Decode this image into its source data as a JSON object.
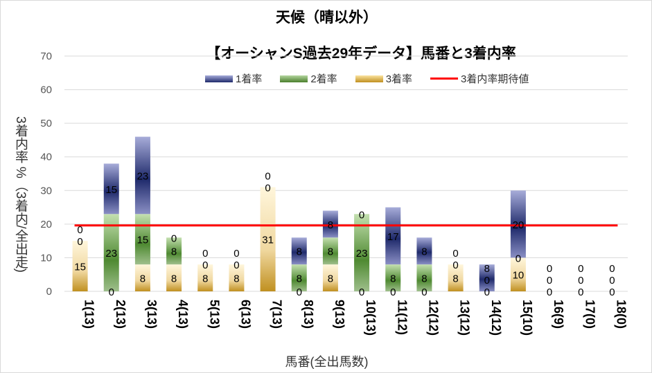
{
  "chart_data": {
    "type": "bar",
    "stacked": true,
    "title": "天候（晴以外）",
    "subtitle": "【オーシャンS過去29年データ】馬番と3着内率",
    "xlabel": "馬番(全出馬数)",
    "ylabel": "3着内率 %（3着内/全出走)",
    "ylim": [
      0,
      70
    ],
    "yticks": [
      0,
      10,
      20,
      30,
      40,
      50,
      60,
      70
    ],
    "grid": true,
    "legend_position": "top",
    "categories": [
      "1(13)",
      "2(13)",
      "3(13)",
      "4(13)",
      "5(13)",
      "6(13)",
      "7(13)",
      "8(13)",
      "9(13)",
      "10(13)",
      "11(12)",
      "12(12)",
      "13(12)",
      "14(12)",
      "15(10)",
      "16(9)",
      "17(0)",
      "18(0)"
    ],
    "series": [
      {
        "name": "3着率",
        "color": "#c09020",
        "values": [
          15,
          0,
          8,
          8,
          8,
          8,
          31,
          0,
          8,
          0,
          0,
          0,
          8,
          0,
          10,
          0,
          0,
          0
        ]
      },
      {
        "name": "2着率",
        "color": "#5a8f3c",
        "values": [
          0,
          23,
          15,
          8,
          0,
          0,
          0,
          8,
          8,
          23,
          8,
          8,
          0,
          0,
          0,
          0,
          0,
          0
        ]
      },
      {
        "name": "1着率",
        "color": "#2a3478",
        "values": [
          0,
          15,
          23,
          0,
          0,
          0,
          0,
          8,
          8,
          0,
          17,
          8,
          0,
          8,
          20,
          0,
          0,
          0
        ]
      }
    ],
    "reference_line": {
      "name": "3着内率期待値",
      "value": 19.6,
      "color": "#ff0000"
    }
  }
}
